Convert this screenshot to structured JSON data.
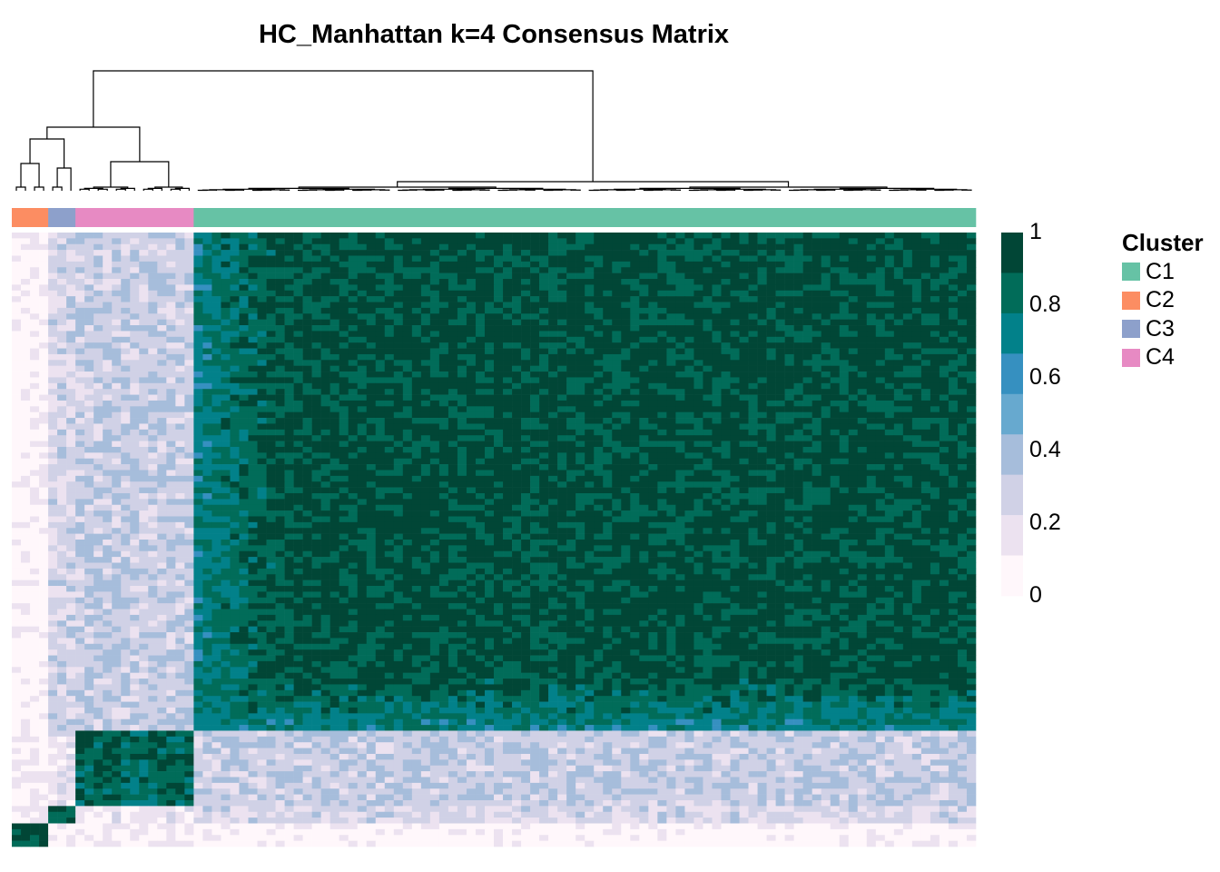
{
  "chart_data": {
    "type": "heatmap",
    "title": "HC_Manhattan k=4 Consensus Matrix",
    "n_samples": 106,
    "color_scale": {
      "min": 0,
      "max": 1,
      "ticks": [
        "1",
        "0.8",
        "0.6",
        "0.4",
        "0.2",
        "0"
      ],
      "colors": [
        "#fff7fb",
        "#ece2f0",
        "#d0d1e6",
        "#a6bddb",
        "#67a9cf",
        "#3690c0",
        "#02818a",
        "#016c59",
        "#014636"
      ]
    },
    "cluster_legend": {
      "title": "Cluster",
      "items": [
        {
          "label": "C1",
          "color": "#66c2a5"
        },
        {
          "label": "C2",
          "color": "#fc8d62"
        },
        {
          "label": "C3",
          "color": "#8da0cb"
        },
        {
          "label": "C4",
          "color": "#e78ac3"
        }
      ]
    },
    "column_clusters": [
      {
        "cluster": "C2",
        "count": 4
      },
      {
        "cluster": "C3",
        "count": 3
      },
      {
        "cluster": "C4",
        "count": 13
      },
      {
        "cluster": "C1",
        "count": 86
      }
    ],
    "block_consensus": {
      "C1-C1": 0.92,
      "C2-C2": 0.95,
      "C3-C3": 0.9,
      "C4-C4": 0.85,
      "C1-C2": 0.05,
      "C1-C3": 0.25,
      "C1-C4": 0.3,
      "C2-C3": 0.1,
      "C2-C4": 0.1,
      "C3-C4": 0.15
    }
  }
}
